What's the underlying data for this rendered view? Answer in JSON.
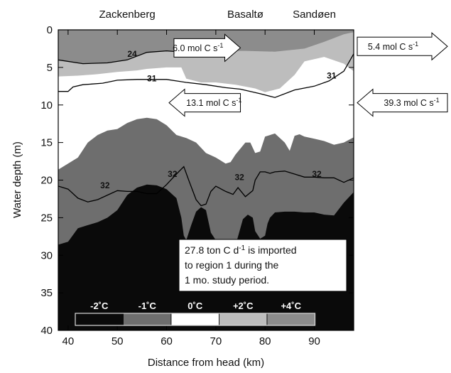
{
  "chart_data": {
    "type": "area",
    "xlabel": "Distance from head (km)",
    "ylabel": "Water depth (m)",
    "xlim": [
      38,
      98
    ],
    "ylim": [
      0,
      40
    ],
    "y_inverted": true,
    "x_ticks": [
      "40",
      "50",
      "60",
      "70",
      "80",
      "90"
    ],
    "y_ticks": [
      "0",
      "5",
      "10",
      "15",
      "20",
      "25",
      "30",
      "35",
      "40"
    ],
    "locations": [
      {
        "name": "Zackenberg",
        "x_km": 52
      },
      {
        "name": "Basaltø",
        "x_km": 76
      },
      {
        "name": "Sandøen",
        "x_km": 90
      }
    ],
    "temperature_bands": [
      {
        "label": "-2˚C",
        "color": "#0a0a0a"
      },
      {
        "label": "-1˚C",
        "color": "#6e6e6e"
      },
      {
        "label": "0˚C",
        "color": "#ffffff"
      },
      {
        "label": "+2˚C",
        "color": "#bdbdbd"
      },
      {
        "label": "+4˚C",
        "color": "#8c8c8c"
      }
    ],
    "layers": [
      {
        "name": "warm_surface",
        "color": "#8c8c8c",
        "bottom": [
          [
            38,
            4.0
          ],
          [
            43,
            4.5
          ],
          [
            48,
            4.4
          ],
          [
            52,
            4.0
          ],
          [
            56,
            3.0
          ],
          [
            60,
            2.8
          ],
          [
            64,
            3.0
          ],
          [
            70,
            2.8
          ],
          [
            76,
            2.8
          ],
          [
            82,
            2.9
          ],
          [
            88,
            2.5
          ],
          [
            92,
            1.6
          ],
          [
            96,
            0.6
          ],
          [
            98,
            0.3
          ]
        ]
      },
      {
        "name": "lighter_layer",
        "color": "#bdbdbd",
        "bottom": [
          [
            38,
            6.2
          ],
          [
            42,
            6.1
          ],
          [
            46,
            5.9
          ],
          [
            50,
            5.6
          ],
          [
            54,
            5.4
          ],
          [
            56,
            5.2
          ],
          [
            60,
            5.0
          ],
          [
            63,
            5.0
          ],
          [
            64,
            6.5
          ],
          [
            67,
            7.0
          ],
          [
            70,
            7.0
          ],
          [
            74,
            7.3
          ],
          [
            78,
            7.8
          ],
          [
            80,
            8.3
          ],
          [
            83,
            7.8
          ],
          [
            86,
            6.0
          ],
          [
            88,
            4.2
          ],
          [
            92,
            3.6
          ],
          [
            96,
            4.5
          ],
          [
            98,
            5.5
          ]
        ]
      },
      {
        "name": "cold_layer",
        "color": "#6e6e6e",
        "top": [
          [
            38,
            18.6
          ],
          [
            42,
            17.0
          ],
          [
            44,
            15.0
          ],
          [
            46,
            14.0
          ],
          [
            48,
            13.4
          ],
          [
            50,
            13.2
          ],
          [
            52,
            12.4
          ],
          [
            54,
            11.9
          ],
          [
            56,
            11.7
          ],
          [
            58,
            11.9
          ],
          [
            60,
            12.7
          ],
          [
            62,
            14.0
          ],
          [
            64,
            14.4
          ],
          [
            66,
            15.0
          ],
          [
            68,
            16.4
          ],
          [
            70,
            17.0
          ],
          [
            72,
            17.8
          ],
          [
            73,
            17.6
          ],
          [
            74,
            16.6
          ],
          [
            76,
            15.0
          ],
          [
            77,
            15.0
          ],
          [
            78,
            16.4
          ],
          [
            79,
            16.2
          ],
          [
            80,
            14.2
          ],
          [
            82,
            13.8
          ],
          [
            84,
            15.0
          ],
          [
            85,
            16.1
          ],
          [
            86,
            14.1
          ],
          [
            87,
            13.9
          ],
          [
            88,
            14.2
          ],
          [
            90,
            14.5
          ],
          [
            92,
            14.8
          ],
          [
            94,
            15.3
          ],
          [
            96,
            15.0
          ],
          [
            98,
            14.3
          ]
        ]
      },
      {
        "name": "coldest_layer",
        "color": "#0a0a0a",
        "top": [
          [
            38,
            28.6
          ],
          [
            40,
            28.2
          ],
          [
            42,
            26.4
          ],
          [
            44,
            26.0
          ],
          [
            46,
            25.6
          ],
          [
            48,
            25.0
          ],
          [
            50,
            24.0
          ],
          [
            52,
            22.0
          ],
          [
            54,
            21.0
          ],
          [
            56,
            20.6
          ],
          [
            58,
            20.7
          ],
          [
            60,
            21.2
          ],
          [
            62,
            22.4
          ],
          [
            63,
            25.0
          ],
          [
            63.5,
            27.4
          ],
          [
            64,
            28.0
          ],
          [
            65,
            26.0
          ],
          [
            66,
            24.2
          ],
          [
            67,
            23.6
          ],
          [
            68,
            24.0
          ],
          [
            69,
            27.0
          ],
          [
            70,
            28.0
          ],
          [
            72,
            29.0
          ],
          [
            74,
            28.7
          ],
          [
            75.5,
            25.2
          ],
          [
            76.5,
            24.6
          ],
          [
            77.5,
            25.0
          ],
          [
            78,
            26.8
          ],
          [
            79,
            27.8
          ],
          [
            80,
            27.4
          ],
          [
            80.5,
            25.8
          ],
          [
            81,
            25.0
          ],
          [
            82,
            24.3
          ],
          [
            84,
            24.2
          ],
          [
            86,
            24.2
          ],
          [
            88,
            24.3
          ],
          [
            90,
            24.3
          ],
          [
            92,
            24.6
          ],
          [
            94,
            24.7
          ],
          [
            96,
            23.0
          ],
          [
            98,
            21.6
          ]
        ]
      }
    ],
    "contours": [
      {
        "label": "24",
        "label_at": [
          53,
          3.2
        ],
        "points": [
          [
            38,
            4.0
          ],
          [
            43,
            4.5
          ],
          [
            48,
            4.4
          ],
          [
            52,
            4.0
          ],
          [
            56,
            3.0
          ],
          [
            60,
            2.8
          ],
          [
            64,
            3.0
          ],
          [
            68,
            2.8
          ]
        ]
      },
      {
        "label": "31",
        "label_at": [
          57,
          6.5
        ],
        "points": [
          [
            38,
            8.2
          ],
          [
            40,
            8.2
          ],
          [
            41,
            7.6
          ],
          [
            43,
            7.3
          ],
          [
            47,
            7.1
          ],
          [
            50,
            6.7
          ],
          [
            54,
            6.6
          ],
          [
            60,
            6.6
          ],
          [
            64,
            7.0
          ],
          [
            68,
            7.3
          ],
          [
            72,
            7.7
          ],
          [
            75,
            7.9
          ],
          [
            79,
            8.5
          ],
          [
            82,
            9.0
          ],
          [
            86,
            8.0
          ],
          [
            90,
            7.5
          ],
          [
            93,
            6.8
          ],
          [
            96,
            5.5
          ],
          [
            98,
            3.2
          ]
        ]
      },
      {
        "label": "31",
        "label_at": [
          93.5,
          6.1
        ],
        "points": []
      },
      {
        "label": "32",
        "label_at": [
          47.5,
          20.7
        ],
        "points": [
          [
            38,
            20.8
          ],
          [
            40,
            21.2
          ],
          [
            42,
            22.4
          ],
          [
            44,
            22.9
          ],
          [
            46,
            22.6
          ],
          [
            48,
            22.0
          ],
          [
            50,
            21.4
          ],
          [
            52,
            21.5
          ],
          [
            54,
            21.5
          ],
          [
            56,
            21.8
          ],
          [
            58,
            21.8
          ],
          [
            60,
            20.6
          ],
          [
            62,
            19.2
          ],
          [
            63.5,
            18.2
          ],
          [
            64.5,
            20.0
          ],
          [
            66,
            22.6
          ],
          [
            67,
            23.4
          ],
          [
            68,
            23.2
          ],
          [
            69,
            21.5
          ],
          [
            70,
            20.8
          ],
          [
            72,
            21.5
          ],
          [
            73.5,
            21.9
          ],
          [
            74.5,
            21.0
          ],
          [
            76,
            22.2
          ],
          [
            77.5,
            21.4
          ],
          [
            78,
            20.0
          ],
          [
            79,
            18.9
          ],
          [
            80,
            18.9
          ],
          [
            81,
            19.1
          ],
          [
            82,
            18.9
          ],
          [
            84,
            18.8
          ],
          [
            86,
            19.2
          ],
          [
            88,
            19.6
          ],
          [
            90,
            19.6
          ],
          [
            92,
            19.7
          ],
          [
            94,
            19.7
          ],
          [
            96,
            20.3
          ],
          [
            98,
            19.7
          ]
        ]
      }
    ],
    "contour_labels_extra": [
      {
        "label": "32",
        "label_at": [
          61.2,
          19.2
        ]
      },
      {
        "label": "32",
        "label_at": [
          74.8,
          19.6
        ]
      },
      {
        "label": "32",
        "label_at": [
          90.5,
          19.2
        ]
      }
    ],
    "fluxes": [
      {
        "text": "6.0 mol C s",
        "sup": "-1",
        "direction": "right",
        "x_km": [
          61.5,
          75
        ],
        "depth": 2.4
      },
      {
        "text": "13.1 mol C s",
        "sup": "-1",
        "direction": "left",
        "x_km": [
          60.5,
          75
        ],
        "depth": 9.7
      },
      {
        "text": "5.4 mol C s",
        "sup": "-1",
        "direction": "right",
        "outside": true,
        "depth": 2.2
      },
      {
        "text": "39.3 mol C s",
        "sup": "-1",
        "direction": "left",
        "outside": true,
        "depth": 9.7
      }
    ],
    "annotation": {
      "line1a": "27.8 ton C d",
      "line1sup": "-1",
      "line1b": " is imported",
      "line2": "to region 1 during the",
      "line3": "1 mo. study period."
    }
  }
}
